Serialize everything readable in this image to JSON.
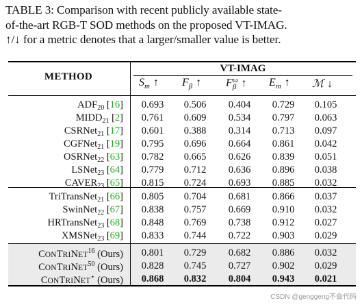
{
  "caption": {
    "line1": "TABLE 3: Comparison with recent publicly available state-",
    "line2": "of-the-art RGB-T SOD methods on the proposed VT-IMAG.",
    "line3": "↑/↓ for a metric denotes that a larger/smaller value is better."
  },
  "table": {
    "method_header": "METHOD",
    "dataset_header": "VT-IMAG",
    "metrics": [
      {
        "symbol": "S",
        "sub": "m",
        "sup": "",
        "arrow": "↑"
      },
      {
        "symbol": "F",
        "sub": "β",
        "sup": "",
        "arrow": "↑"
      },
      {
        "symbol": "F",
        "sub": "β",
        "sup": "ω",
        "arrow": "↑"
      },
      {
        "symbol": "E",
        "sub": "m",
        "sup": "",
        "arrow": "↑"
      },
      {
        "symbol": "ℳ",
        "sub": "",
        "sup": "",
        "arrow": "↓"
      }
    ],
    "groups": [
      [
        {
          "name": "ADF",
          "sub": "20",
          "cite": "16",
          "values": [
            "0.693",
            "0.506",
            "0.404",
            "0.729",
            "0.105"
          ]
        },
        {
          "name": "MIDD",
          "sub": "21",
          "cite": "2",
          "values": [
            "0.761",
            "0.609",
            "0.534",
            "0.797",
            "0.063"
          ]
        },
        {
          "name": "CSRNet",
          "sub": "21",
          "cite": "17",
          "values": [
            "0.601",
            "0.388",
            "0.314",
            "0.713",
            "0.097"
          ]
        },
        {
          "name": "CGFNet",
          "sub": "21",
          "cite": "19",
          "values": [
            "0.795",
            "0.696",
            "0.664",
            "0.861",
            "0.042"
          ]
        },
        {
          "name": "OSRNet",
          "sub": "22",
          "cite": "63",
          "values": [
            "0.782",
            "0.665",
            "0.626",
            "0.839",
            "0.051"
          ]
        },
        {
          "name": "LSNet",
          "sub": "23",
          "cite": "64",
          "values": [
            "0.779",
            "0.712",
            "0.636",
            "0.896",
            "0.038"
          ]
        },
        {
          "name": "CAVER",
          "sub": "23",
          "cite": "65",
          "values": [
            "0.815",
            "0.724",
            "0.693",
            "0.885",
            "0.032"
          ]
        }
      ],
      [
        {
          "name": "TriTransNet",
          "sub": "21",
          "cite": "66",
          "values": [
            "0.805",
            "0.704",
            "0.681",
            "0.866",
            "0.037"
          ]
        },
        {
          "name": "SwinNet",
          "sub": "22",
          "cite": "67",
          "values": [
            "0.838",
            "0.757",
            "0.669",
            "0.910",
            "0.032"
          ]
        },
        {
          "name": "HRTransNet",
          "sub": "23",
          "cite": "68",
          "values": [
            "0.848",
            "0.769",
            "0.738",
            "0.912",
            "0.027"
          ]
        },
        {
          "name": "XMSNet",
          "sub": "23",
          "cite": "69",
          "values": [
            "0.833",
            "0.744",
            "0.722",
            "0.903",
            "0.029"
          ]
        }
      ],
      [
        {
          "name": "CONTRINET",
          "sup": "16",
          "suffix": "(Ours)",
          "values": [
            "0.801",
            "0.729",
            "0.682",
            "0.886",
            "0.032"
          ],
          "bold": false
        },
        {
          "name": "CONTRINET",
          "sup": "50",
          "suffix": "(Ours)",
          "values": [
            "0.828",
            "0.745",
            "0.727",
            "0.902",
            "0.029"
          ],
          "bold": false
        },
        {
          "name": "CONTRINET",
          "sup": "⋆",
          "suffix": "(Ours)",
          "values": [
            "0.868",
            "0.832",
            "0.804",
            "0.943",
            "0.021"
          ],
          "bold": true
        }
      ]
    ]
  },
  "watermark": "CSDN @genggeng不会代码"
}
